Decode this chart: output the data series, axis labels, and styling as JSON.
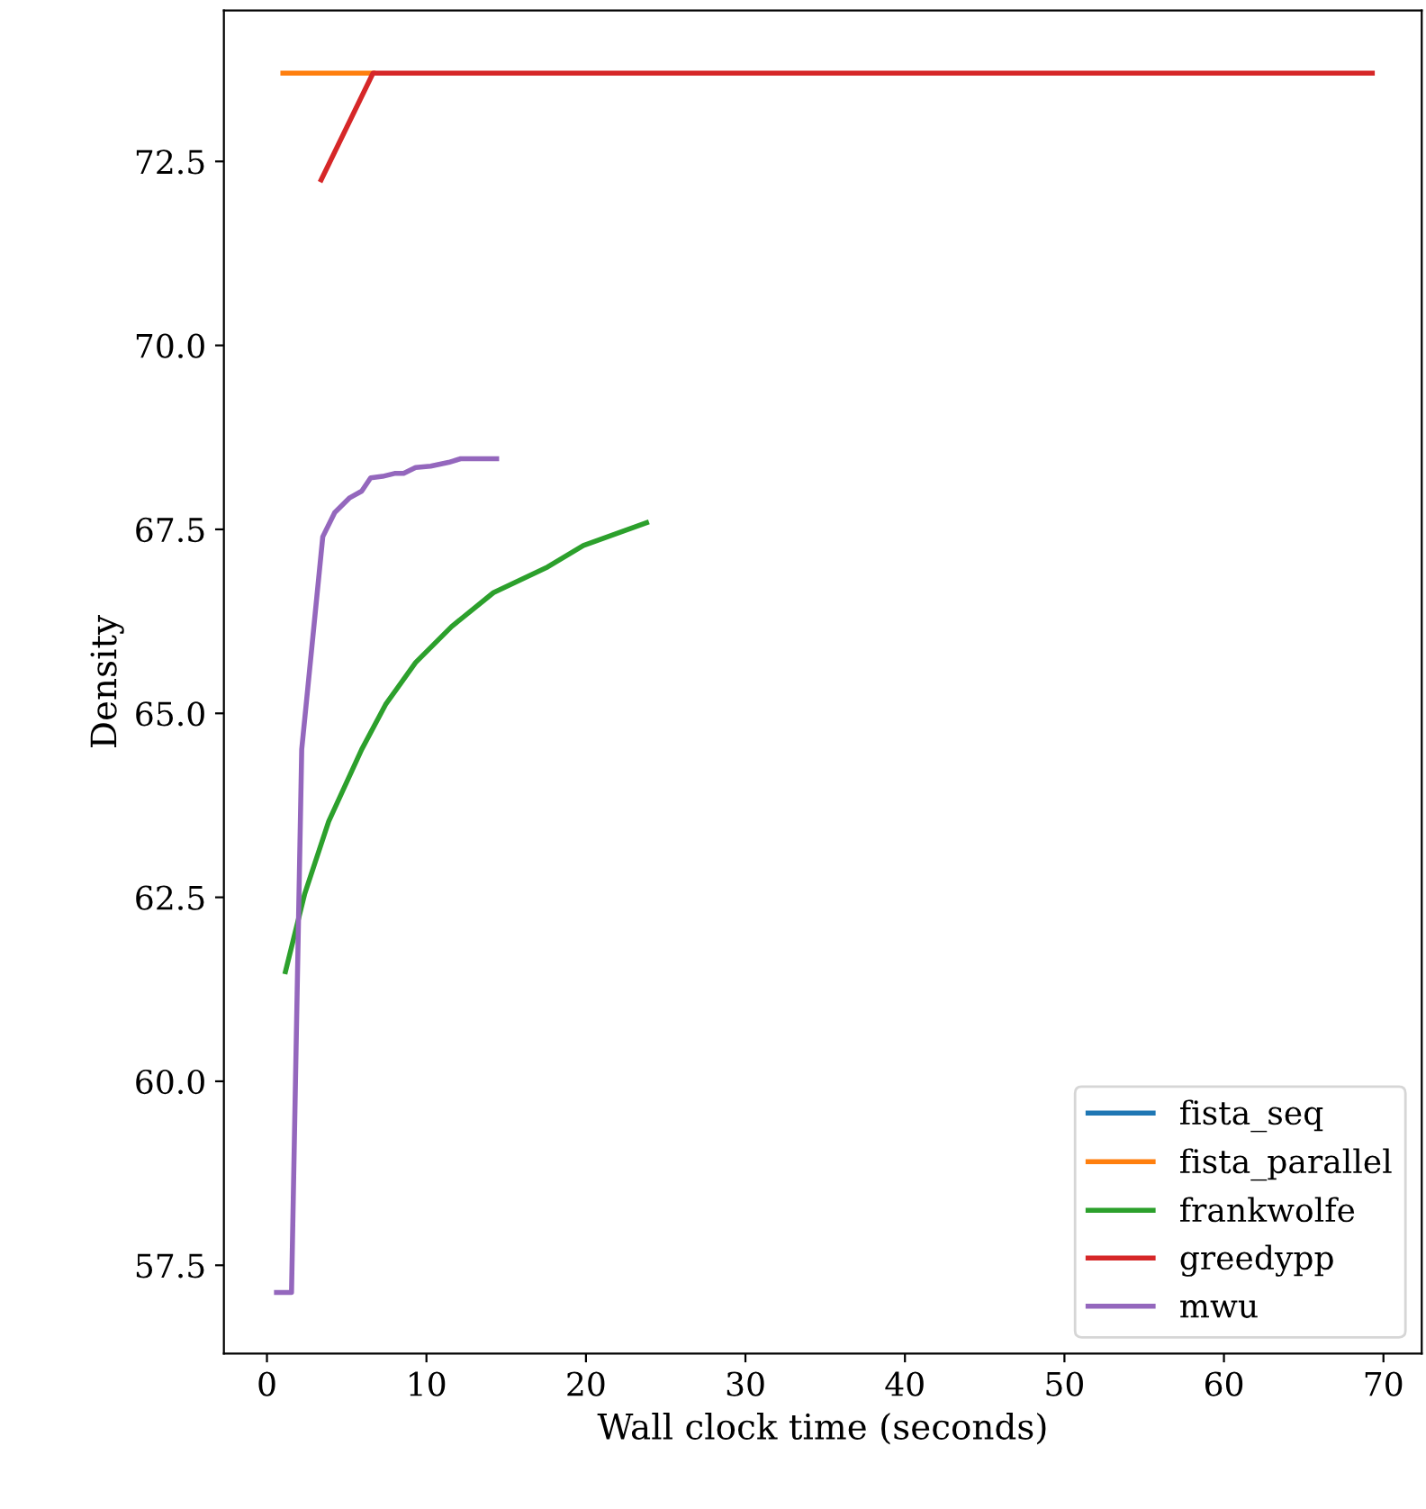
{
  "chart_data": {
    "type": "line",
    "xlabel": "Wall clock time (seconds)",
    "ylabel": "Density",
    "xlim": [
      -2.7,
      72.4
    ],
    "ylim": [
      56.3,
      74.55
    ],
    "xticks": [
      0,
      10,
      20,
      30,
      40,
      50,
      60,
      70
    ],
    "yticks": [
      {
        "value": 57.5,
        "label": "57.5"
      },
      {
        "value": 60,
        "label": "60.0"
      },
      {
        "value": 62.5,
        "label": "62.5"
      },
      {
        "value": 65,
        "label": "65.0"
      },
      {
        "value": 67.5,
        "label": "67.5"
      },
      {
        "value": 70,
        "label": "70.0"
      },
      {
        "value": 72.5,
        "label": "72.5"
      }
    ],
    "grid": false,
    "legend": "bottom right",
    "marker": "none",
    "line_style": "solid",
    "series": [
      {
        "name": "fista_seq",
        "color": "#1f77b4"
      },
      {
        "name": "fista_parallel",
        "color": "#ff7f0e",
        "x": [
          1.0,
          6.65
        ],
        "values": [
          73.7,
          73.7
        ]
      },
      {
        "name": "frankwolfe",
        "color": "#2ca02c",
        "x": [
          1.16,
          2.37,
          3.87,
          5.94,
          7.44,
          9.32,
          11.58,
          14.2,
          17.6,
          19.84,
          23.8
        ],
        "values": [
          61.49,
          62.55,
          63.53,
          64.51,
          65.12,
          65.69,
          66.18,
          66.64,
          66.99,
          67.28,
          67.59
        ]
      },
      {
        "name": "greedypp",
        "color": "#d62728",
        "x": [
          3.4,
          6.65,
          69.3
        ],
        "values": [
          72.25,
          73.7,
          73.7
        ]
      },
      {
        "name": "mwu",
        "color": "#9467bd",
        "x": [
          0.6,
          1.54,
          2.18,
          3.5,
          4.25,
          5.19,
          5.94,
          6.5,
          7.25,
          8.0,
          8.57,
          9.32,
          10.26,
          11.39,
          12.14,
          14.4
        ],
        "values": [
          57.13,
          57.13,
          64.51,
          67.4,
          67.73,
          67.93,
          68.02,
          68.2,
          68.22,
          68.26,
          68.26,
          68.34,
          68.36,
          68.41,
          68.46,
          68.46
        ]
      }
    ]
  }
}
